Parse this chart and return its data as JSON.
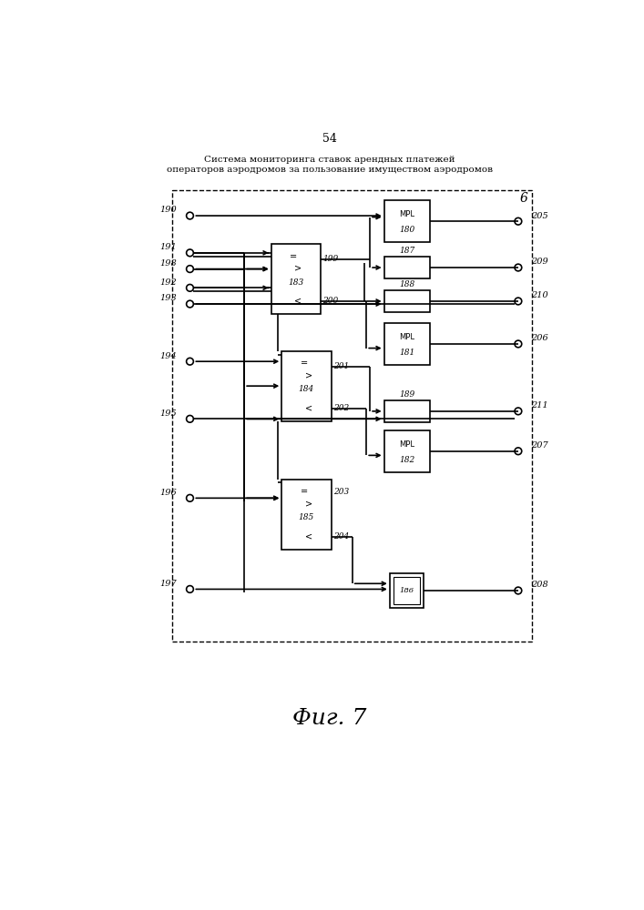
{
  "page_number": "54",
  "title_line1": "Система мониторинга ставок арендных платежей",
  "title_line2": "операторов аэродромов за пользование имуществом аэродромов",
  "fig_label": "Фиг. 7",
  "block_label": "6",
  "bg": "#ffffff",
  "lc": "#000000"
}
